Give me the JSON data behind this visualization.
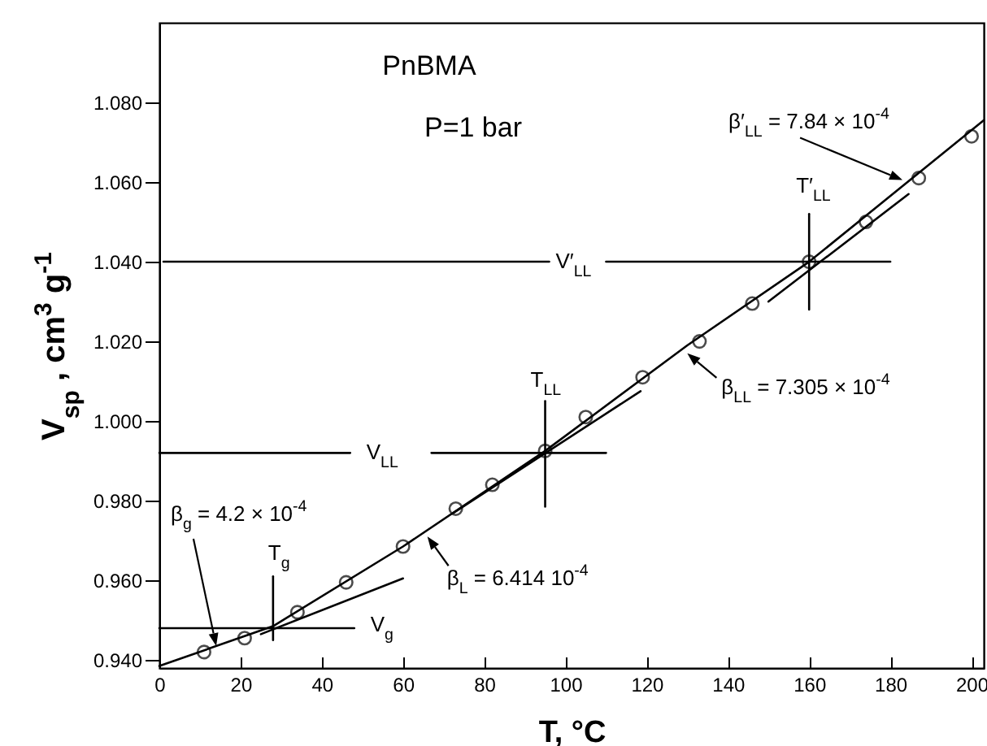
{
  "chart_data": {
    "type": "line",
    "xlabel": "T, °C",
    "ylabel": "V$_{sp}$ , cm$^{3}$ g$^{-1}$",
    "xlim": [
      0,
      203
    ],
    "ylim": [
      0.938,
      1.1
    ],
    "xticks": [
      0,
      20,
      40,
      60,
      80,
      100,
      120,
      140,
      160,
      180,
      200
    ],
    "yticks": [
      {
        "value": 0.94,
        "label": "0.940"
      },
      {
        "value": 0.96,
        "label": "0.960"
      },
      {
        "value": 0.98,
        "label": "0.980"
      },
      {
        "value": 1.0,
        "label": "1.000"
      },
      {
        "value": 1.02,
        "label": "1.020"
      },
      {
        "value": 1.04,
        "label": "1.040"
      },
      {
        "value": 1.06,
        "label": "1.060"
      },
      {
        "value": 1.08,
        "label": "1.080"
      }
    ],
    "grid": false,
    "annotations": [
      "PnBMA",
      "P=1 bar",
      {
        "text": "β′$_{LL}$ = 7.84 × 10$^{-4}$",
        "x": 183,
        "y": 1.0605
      },
      {
        "text": "T′$_{LL}$",
        "x": 160,
        "y": 1.052
      },
      {
        "text": "V′$_{LL}$",
        "x": 96,
        "y": 1.04
      },
      {
        "text": "β$_{LL}$ = 7.305 × 10$^{-4}$",
        "x": 130,
        "y": 1.017
      },
      {
        "text": "T$_{LL}$",
        "x": 95,
        "y": 1.005
      },
      {
        "text": "V$_{LL}$",
        "x": 47,
        "y": 0.992
      },
      {
        "text": "β$_{L}$ = 6.414 10$^{-4}$",
        "x": 66,
        "y": 0.971
      },
      {
        "text": "β$_{g}$ = 4.2 × 10$^{-4}$",
        "x": 14,
        "y": 0.9435
      },
      {
        "text": "T$_{g}$",
        "x": 28,
        "y": 0.961
      },
      {
        "text": "V$_{g}$",
        "x": 48,
        "y": 0.948
      }
    ],
    "series": [
      {
        "type": "scatter",
        "marker": "circle",
        "color": "#000000",
        "x": [
          11,
          21,
          34,
          46,
          60,
          73,
          82,
          95,
          105,
          119,
          133,
          146,
          160,
          174,
          187,
          200
        ],
        "values": [
          0.942,
          0.9455,
          0.952,
          0.9595,
          0.9685,
          0.978,
          0.984,
          0.9925,
          1.001,
          1.011,
          1.02,
          1.0295,
          1.04,
          1.05,
          1.061,
          1.0715
        ]
      },
      {
        "color": "#000000",
        "x": [
          0,
          28,
          60,
          95,
          130,
          160,
          203
        ],
        "values": [
          0.9385,
          0.9485,
          0.9685,
          0.9925,
          1.019,
          1.04,
          1.0755
        ]
      },
      {
        "color": "#000000",
        "x": [
          25,
          60
        ],
        "values": [
          0.9465,
          0.9605
        ]
      },
      {
        "color": "#000000",
        "x": [
          72.5,
          118.5
        ],
        "values": [
          0.977,
          1.0075
        ]
      },
      {
        "color": "#000000",
        "x": [
          150,
          184.5
        ],
        "values": [
          1.03,
          1.057
        ]
      },
      {
        "color": "#000000",
        "x": [
          28,
          28
        ],
        "values": [
          0.945,
          0.961
        ]
      },
      {
        "color": "#000000",
        "x": [
          0,
          48
        ],
        "values": [
          0.948,
          0.948
        ]
      },
      {
        "color": "#000000",
        "x": [
          95,
          95
        ],
        "values": [
          0.9785,
          1.005
        ]
      },
      {
        "color": "#000000",
        "x": [
          0,
          47,
          56,
          67,
          110
        ],
        "values": [
          0.992,
          0.992,
          null,
          0.992,
          0.992
        ]
      },
      {
        "color": "#000000",
        "x": [
          160,
          160
        ],
        "values": [
          1.028,
          1.052
        ]
      },
      {
        "color": "#000000",
        "x": [
          1,
          96,
          103,
          110,
          180
        ],
        "values": [
          1.04,
          1.04,
          null,
          1.04,
          1.04
        ]
      }
    ]
  }
}
